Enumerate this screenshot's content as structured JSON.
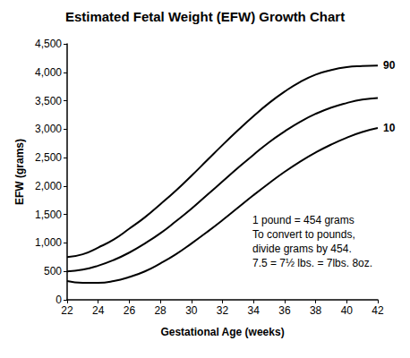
{
  "chart_data": {
    "type": "line",
    "title": "Estimated Fetal Weight (EFW) Growth Chart",
    "x_label": "Gestational Age (weeks)",
    "y_label": "EFW (grams)",
    "annotation": [
      "1 pound = 454 grams",
      "To convert to pounds,",
      "divide grams by 454.",
      "7.5 = 7½ lbs. = 7lbs. 8oz."
    ],
    "x": [
      22,
      23,
      24,
      25,
      26,
      27,
      28,
      29,
      30,
      31,
      32,
      33,
      34,
      35,
      36,
      37,
      38,
      39,
      40,
      41,
      42
    ],
    "series": [
      {
        "name": "90",
        "color": "#000000",
        "values": [
          750,
          800,
          920,
          1060,
          1250,
          1450,
          1680,
          1920,
          2180,
          2450,
          2720,
          2980,
          3230,
          3460,
          3660,
          3830,
          3960,
          4040,
          4090,
          4110,
          4120
        ]
      },
      {
        "color": "#000000",
        "values": [
          500,
          530,
          600,
          700,
          830,
          990,
          1170,
          1380,
          1600,
          1840,
          2080,
          2320,
          2550,
          2770,
          2960,
          3130,
          3270,
          3380,
          3460,
          3520,
          3550
        ]
      },
      {
        "name": "10",
        "color": "#000000",
        "values": [
          330,
          300,
          300,
          330,
          400,
          500,
          640,
          800,
          990,
          1190,
          1400,
          1620,
          1840,
          2050,
          2250,
          2430,
          2590,
          2730,
          2850,
          2950,
          3020
        ]
      }
    ],
    "xlim": [
      22,
      42
    ],
    "xticks": [
      22,
      24,
      26,
      28,
      30,
      32,
      34,
      36,
      38,
      40,
      42
    ],
    "ylim": [
      0,
      4500
    ],
    "yticks": [
      0,
      500,
      1000,
      1500,
      2000,
      2500,
      3000,
      3500,
      4000,
      4500
    ],
    "grid": false
  }
}
